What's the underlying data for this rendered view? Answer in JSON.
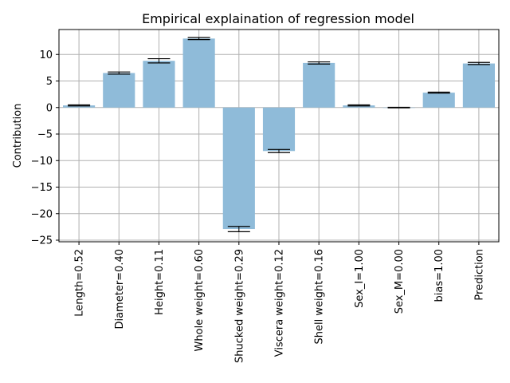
{
  "chart_data": {
    "type": "bar",
    "title": "Empirical explaination of regression model",
    "xlabel": "",
    "ylabel": "Contribution",
    "categories": [
      "Length=0.52",
      "Diameter=0.40",
      "Height=0.11",
      "Whole weight=0.60",
      "Shucked weight=0.29",
      "Viscera weight=0.12",
      "Shell weight=0.16",
      "Sex_I=1.00",
      "Sex_M=0.00",
      "bias=1.00",
      "Prediction"
    ],
    "values": [
      0.4,
      6.5,
      8.8,
      13.0,
      -22.9,
      -8.2,
      8.4,
      0.4,
      0.0,
      2.8,
      8.3
    ],
    "error": [
      0.1,
      0.2,
      0.4,
      0.2,
      0.5,
      0.3,
      0.2,
      0.1,
      0.05,
      0.1,
      0.2
    ],
    "ylim": [
      -25.3,
      14.7
    ],
    "yticks": [
      10,
      5,
      0,
      -5,
      -10,
      -15,
      -20,
      -25
    ],
    "ytick_labels": [
      "10",
      "5",
      "0",
      "−5",
      "−10",
      "−15",
      "−20",
      "−25"
    ],
    "grid": true,
    "colors": {
      "bar": "#8fbbd9",
      "grid": "#b0b0b0",
      "axis": "#000000",
      "errorbar": "#000000"
    }
  }
}
